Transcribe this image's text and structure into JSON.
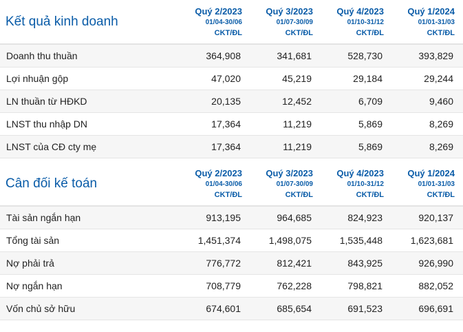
{
  "columns": [
    {
      "quarter": "Quý 2/2023",
      "dates": "01/04-30/06",
      "status": "CKT/ĐL"
    },
    {
      "quarter": "Quý 3/2023",
      "dates": "01/07-30/09",
      "status": "CKT/ĐL"
    },
    {
      "quarter": "Quý 4/2023",
      "dates": "01/10-31/12",
      "status": "CKT/ĐL"
    },
    {
      "quarter": "Quý 1/2024",
      "dates": "01/01-31/03",
      "status": "CKT/ĐL"
    }
  ],
  "business": {
    "title": "Kết quả kinh doanh",
    "rows": [
      {
        "label": "Doanh thu thuần",
        "values": [
          "364,908",
          "341,681",
          "528,730",
          "393,829"
        ]
      },
      {
        "label": "Lợi nhuận gộp",
        "values": [
          "47,020",
          "45,219",
          "29,184",
          "29,244"
        ]
      },
      {
        "label": "LN thuần từ HĐKD",
        "values": [
          "20,135",
          "12,452",
          "6,709",
          "9,460"
        ]
      },
      {
        "label": "LNST thu nhập DN",
        "values": [
          "17,364",
          "11,219",
          "5,869",
          "8,269"
        ]
      },
      {
        "label": "LNST của CĐ cty mẹ",
        "values": [
          "17,364",
          "11,219",
          "5,869",
          "8,269"
        ]
      }
    ]
  },
  "balance": {
    "title": "Cân đối kế toán",
    "rows": [
      {
        "label": "Tài sản ngắn hạn",
        "values": [
          "913,195",
          "964,685",
          "824,923",
          "920,137"
        ]
      },
      {
        "label": "Tổng tài sản",
        "values": [
          "1,451,374",
          "1,498,075",
          "1,535,448",
          "1,623,681"
        ]
      },
      {
        "label": "Nợ phải trả",
        "values": [
          "776,772",
          "812,421",
          "843,925",
          "926,990"
        ]
      },
      {
        "label": "Nợ ngắn hạn",
        "values": [
          "708,779",
          "762,228",
          "798,821",
          "882,052"
        ]
      },
      {
        "label": "Vốn chủ sở hữu",
        "values": [
          "674,601",
          "685,654",
          "691,523",
          "696,691"
        ]
      }
    ]
  }
}
